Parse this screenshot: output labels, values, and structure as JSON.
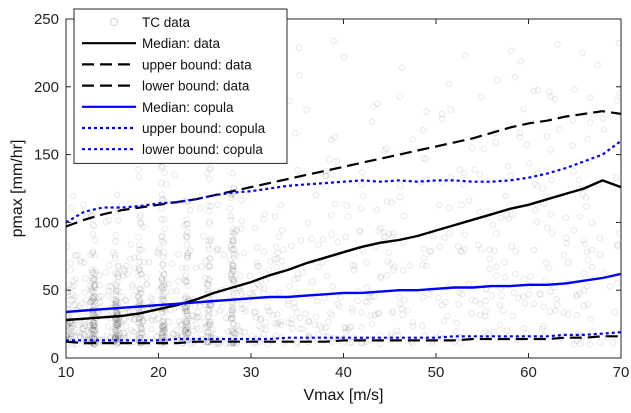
{
  "chart_data": {
    "type": "line",
    "xlabel": "Vmax [m/s]",
    "ylabel": "pmax [mm/hr]",
    "xlim": [
      10,
      70
    ],
    "ylim": [
      0,
      250
    ],
    "x_ticks": [
      "10",
      "20",
      "30",
      "40",
      "50",
      "60",
      "70"
    ],
    "y_ticks": [
      "0",
      "50",
      "100",
      "150",
      "200",
      "250"
    ],
    "grid": false,
    "legend_position": "top-left",
    "x": [
      10,
      12,
      14,
      16,
      18,
      20,
      22,
      24,
      26,
      28,
      30,
      32,
      34,
      36,
      38,
      40,
      42,
      44,
      46,
      48,
      50,
      52,
      54,
      56,
      58,
      60,
      62,
      64,
      66,
      68,
      70
    ],
    "scatter": {
      "name": "TC data",
      "color": "#000000",
      "note_hidden": "",
      "x_range": [
        10,
        70
      ]
    },
    "series": [
      {
        "name": "Median: data",
        "color": "#000000",
        "style": "solid",
        "values": [
          28,
          29,
          30,
          31,
          33,
          36,
          39,
          43,
          48,
          52,
          56,
          61,
          65,
          70,
          74,
          78,
          82,
          85,
          87,
          90,
          94,
          98,
          102,
          106,
          110,
          113,
          117,
          121,
          125,
          131,
          126
        ]
      },
      {
        "name": "upper bound: data",
        "color": "#000000",
        "style": "dashed",
        "values": [
          97,
          102,
          106,
          109,
          111,
          113,
          115,
          117,
          120,
          123,
          126,
          129,
          132,
          135,
          138,
          141,
          144,
          147,
          150,
          153,
          156,
          159,
          162,
          166,
          170,
          173,
          175,
          178,
          180,
          182,
          180
        ]
      },
      {
        "name": "lower bound: data",
        "color": "#000000",
        "style": "dashed",
        "values": [
          12,
          11,
          11,
          11,
          11,
          11,
          11,
          12,
          12,
          12,
          12,
          12,
          12,
          12,
          12,
          13,
          13,
          13,
          13,
          13,
          13,
          13,
          14,
          14,
          14,
          14,
          14,
          15,
          15,
          16,
          16
        ]
      },
      {
        "name": "Median: copula",
        "color": "#0000ff",
        "style": "solid",
        "values": [
          34,
          35,
          36,
          37,
          38,
          39,
          40,
          41,
          42,
          43,
          44,
          45,
          45,
          46,
          47,
          48,
          48,
          49,
          50,
          50,
          51,
          52,
          52,
          53,
          53,
          54,
          54,
          55,
          57,
          59,
          62
        ]
      },
      {
        "name": "upper bound: copula",
        "color": "#0000ff",
        "style": "dotted",
        "values": [
          100,
          108,
          111,
          111,
          112,
          114,
          115,
          117,
          120,
          122,
          123,
          125,
          127,
          128,
          129,
          130,
          131,
          130,
          131,
          130,
          131,
          131,
          130,
          130,
          131,
          133,
          136,
          140,
          145,
          150,
          160
        ]
      },
      {
        "name": "lower bound: copula",
        "color": "#0000ff",
        "style": "dotted",
        "values": [
          13,
          13,
          13,
          13,
          13,
          13,
          14,
          14,
          14,
          14,
          14,
          14,
          15,
          15,
          15,
          15,
          15,
          15,
          15,
          15,
          15,
          16,
          16,
          16,
          16,
          16,
          16,
          17,
          17,
          18,
          19
        ]
      }
    ]
  }
}
